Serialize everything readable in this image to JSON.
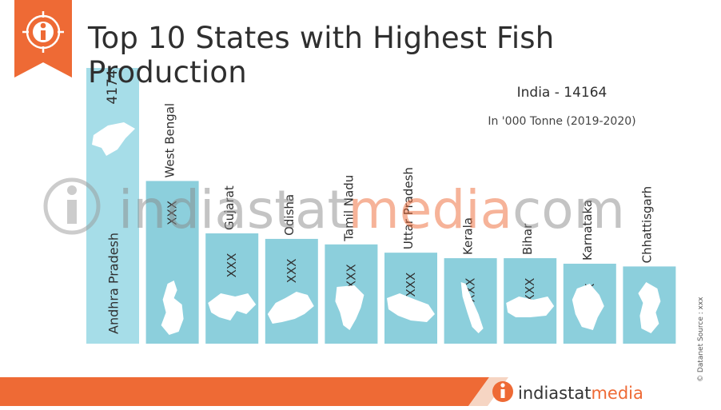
{
  "header": {
    "title": "Top 10 States with Highest Fish Production",
    "summary": "India - 14164",
    "unit": "In '000 Tonne (2019-2020)"
  },
  "watermark": {
    "text": "indiastatmedia.com",
    "part1": "indiastat",
    "part2": "media",
    "part3": "com"
  },
  "footer": {
    "source": "© Datanet Source : xxx",
    "brand_left": "indiastat",
    "brand_right": "media"
  },
  "colors": {
    "accent": "#ee6a35",
    "bar": "#8ccfdc",
    "bar_highlight": "#a6dde8",
    "text": "#2f2f2f",
    "footer_band": "#ee6a35",
    "footer_band_light": "#f6d5c3"
  },
  "chart_data": {
    "type": "bar",
    "categories": [
      "Andhra Pradesh",
      "West Bengal",
      "Gujarat",
      "Odisha",
      "Tamil Nadu",
      "Uttar Pradesh",
      "Kerala",
      "Bihar",
      "Karnataka",
      "Chhattisgarh"
    ],
    "values": [
      4174,
      null,
      null,
      null,
      null,
      null,
      null,
      null,
      null,
      null
    ],
    "value_labels": [
      "4174",
      "XXX",
      "XXX",
      "XXX",
      "XXX",
      "XXX",
      "XXX",
      "XXX",
      "XXX",
      "XXX"
    ],
    "relative_heights": [
      1.0,
      0.59,
      0.4,
      0.38,
      0.36,
      0.33,
      0.31,
      0.31,
      0.29,
      0.28
    ],
    "icons": [
      "andhra-pradesh-map-icon",
      "west-bengal-map-icon",
      "gujarat-map-icon",
      "odisha-map-icon",
      "tamil-nadu-map-icon",
      "uttar-pradesh-map-icon",
      "kerala-map-icon",
      "bihar-map-icon",
      "karnataka-map-icon",
      "chhattisgarh-map-icon"
    ]
  }
}
